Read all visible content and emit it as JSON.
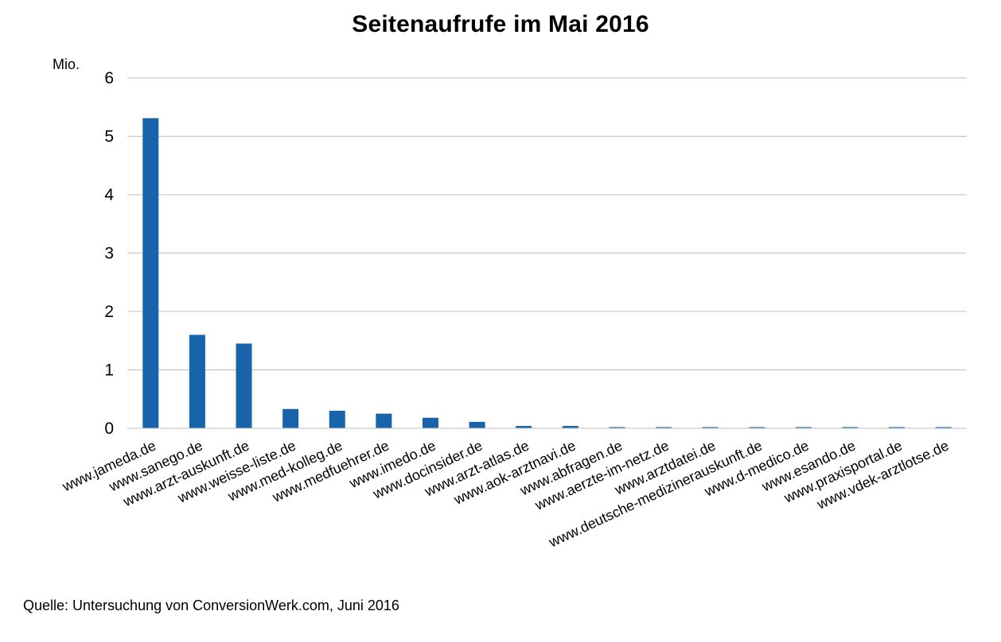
{
  "chart_data": {
    "type": "bar",
    "title": "Seitenaufrufe im Mai 2016",
    "unit_label": "Mio.",
    "source": "Quelle: Untersuchung von ConversionWerk.com, Juni 2016",
    "xlabel": "",
    "ylabel": "",
    "ylim": [
      0,
      6
    ],
    "yticks": [
      0,
      1,
      2,
      3,
      4,
      5,
      6
    ],
    "grid": true,
    "legend": "none",
    "bar_color": "#1764AB",
    "gridline_color": "#BFBFBF",
    "categories": [
      "www.jameda.de",
      "www.sanego.de",
      "www.arzt-auskunft.de",
      "www.weisse-liste.de",
      "www.med-kolleg.de",
      "www.medfuehrer.de",
      "www.imedo.de",
      "www.docinsider.de",
      "www.arzt-atlas.de",
      "www.aok-arztnavi.de",
      "www.abfragen.de",
      "www.aerzte-im-netz.de",
      "www.arztdatei.de",
      "www.deutsche-medizinerauskunft.de",
      "www.d-medico.de",
      "www.esando.de",
      "www.praxisportal.de",
      "www.vdek-arztlotse.de"
    ],
    "values": [
      5.31,
      1.6,
      1.45,
      0.33,
      0.3,
      0.25,
      0.18,
      0.11,
      0.04,
      0.04,
      0.02,
      0.02,
      0.02,
      0.02,
      0.02,
      0.02,
      0.02,
      0.02
    ]
  }
}
